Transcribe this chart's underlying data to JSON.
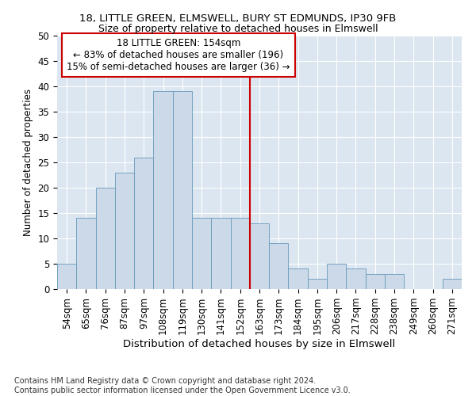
{
  "title_line1": "18, LITTLE GREEN, ELMSWELL, BURY ST EDMUNDS, IP30 9FB",
  "title_line2": "Size of property relative to detached houses in Elmswell",
  "xlabel": "Distribution of detached houses by size in Elmswell",
  "ylabel": "Number of detached properties",
  "footer_line1": "Contains HM Land Registry data © Crown copyright and database right 2024.",
  "footer_line2": "Contains public sector information licensed under the Open Government Licence v3.0.",
  "annotation_line1": "18 LITTLE GREEN: 154sqm",
  "annotation_line2": "← 83% of detached houses are smaller (196)",
  "annotation_line3": "15% of semi-detached houses are larger (36) →",
  "bar_labels": [
    "54sqm",
    "65sqm",
    "76sqm",
    "87sqm",
    "97sqm",
    "108sqm",
    "119sqm",
    "130sqm",
    "141sqm",
    "152sqm",
    "163sqm",
    "173sqm",
    "184sqm",
    "195sqm",
    "206sqm",
    "217sqm",
    "228sqm",
    "238sqm",
    "249sqm",
    "260sqm",
    "271sqm"
  ],
  "bar_values": [
    5,
    14,
    20,
    23,
    26,
    39,
    39,
    14,
    14,
    14,
    13,
    9,
    4,
    2,
    5,
    4,
    3,
    3,
    0,
    0,
    2
  ],
  "bar_color": "#ccd9e8",
  "bar_edge_color": "#6699bb",
  "vline_x": 9.5,
  "vline_color": "#cc0000",
  "ylim": [
    0,
    50
  ],
  "yticks": [
    0,
    5,
    10,
    15,
    20,
    25,
    30,
    35,
    40,
    45,
    50
  ],
  "bg_color": "#dce6f0",
  "annotation_box_color": "#cc0000",
  "title1_fontsize": 9.5,
  "title2_fontsize": 9,
  "xlabel_fontsize": 9.5,
  "ylabel_fontsize": 8.5,
  "tick_fontsize": 8.5,
  "annot_fontsize": 8.5,
  "footer_fontsize": 7
}
